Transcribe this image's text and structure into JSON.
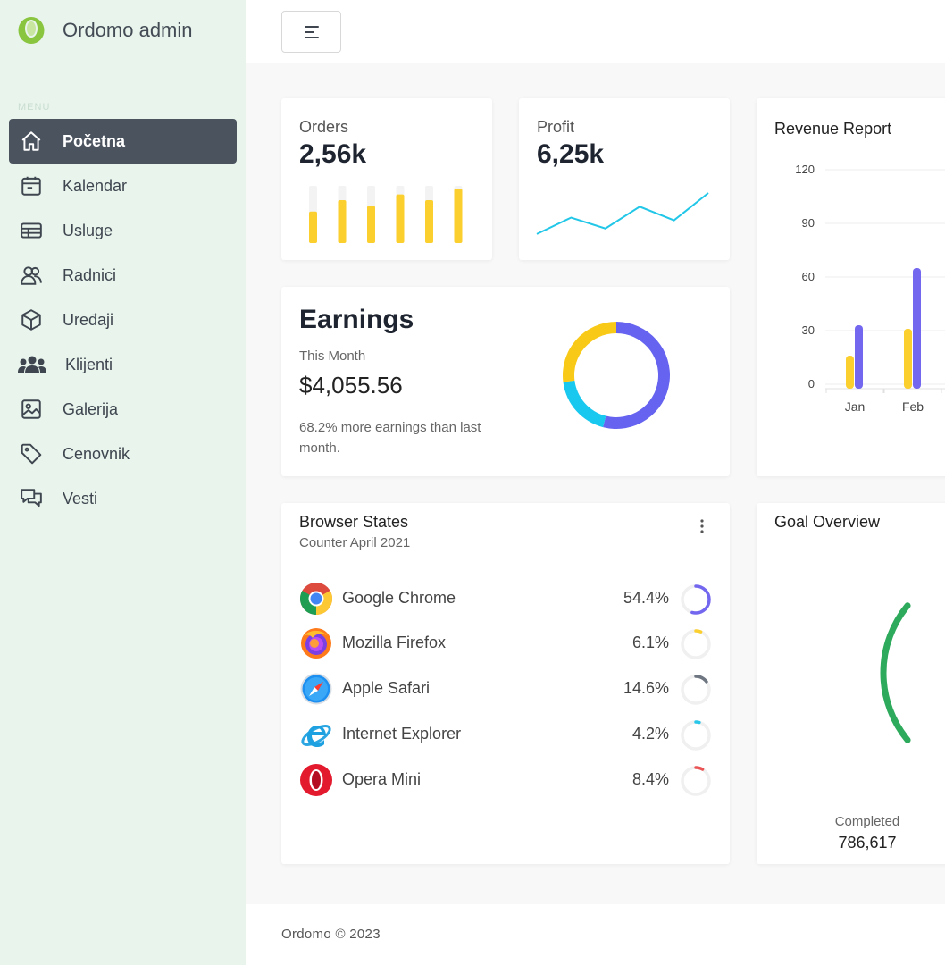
{
  "brand": {
    "name": "Ordomo admin",
    "accent": "#8ac53f"
  },
  "sidebar": {
    "caption": "MENU",
    "items": [
      {
        "label": "Početna",
        "icon": "home-icon",
        "active": true
      },
      {
        "label": "Kalendar",
        "icon": "calendar-icon"
      },
      {
        "label": "Usluge",
        "icon": "table-icon"
      },
      {
        "label": "Radnici",
        "icon": "users-icon"
      },
      {
        "label": "Uređaji",
        "icon": "box-icon"
      },
      {
        "label": "Klijenti",
        "icon": "people-group-icon"
      },
      {
        "label": "Galerija",
        "icon": "image-icon"
      },
      {
        "label": "Cenovnik",
        "icon": "tag-icon"
      },
      {
        "label": "Vesti",
        "icon": "chat-icon"
      }
    ]
  },
  "header": {
    "toggle_icon": "menu-toggle-icon"
  },
  "orders": {
    "label": "Orders",
    "value": "2,56k",
    "bar_levels": [
      0.55,
      0.75,
      0.65,
      0.85,
      0.75,
      0.95
    ],
    "color": "#fbcf2e"
  },
  "profit": {
    "label": "Profit",
    "value": "6,25k",
    "trend": [
      10,
      40,
      20,
      60,
      35,
      85
    ],
    "color": "#22c7e8"
  },
  "earnings": {
    "title": "Earnings",
    "period": "This Month",
    "amount": "$4,055.56",
    "note": "68.2% more earnings than last month.",
    "donut": [
      {
        "value": 54,
        "color": "#6563ef"
      },
      {
        "value": 19,
        "color": "#18c8ee"
      },
      {
        "value": 27,
        "color": "#f9c917"
      }
    ]
  },
  "revenue": {
    "title": "Revenue Report"
  },
  "chart_data": {
    "type": "bar",
    "title": "Revenue Report",
    "categories": [
      "Jan",
      "Feb"
    ],
    "series": [
      {
        "values": [
          16,
          31
        ],
        "color": "#fbcf2e"
      },
      {
        "values": [
          33,
          65
        ],
        "color": "#7367f0"
      }
    ],
    "y_ticks": [
      0,
      30,
      60,
      90,
      120
    ],
    "ylim": [
      0,
      120
    ],
    "grid": true
  },
  "browsers": {
    "title": "Browser States",
    "subtitle": "Counter April 2021",
    "menu_icon": "more-vertical-icon",
    "items": [
      {
        "name": "Google Chrome",
        "pct": "54.4%",
        "level": 0.544,
        "color": "#7367f0",
        "icon": "chrome-icon"
      },
      {
        "name": "Mozilla Firefox",
        "pct": "6.1%",
        "level": 0.061,
        "color": "#fbcf2e",
        "icon": "firefox-icon"
      },
      {
        "name": "Apple Safari",
        "pct": "14.6%",
        "level": 0.146,
        "color": "#6e7681",
        "icon": "safari-icon"
      },
      {
        "name": "Internet Explorer",
        "pct": "4.2%",
        "level": 0.042,
        "color": "#28c7ea",
        "icon": "ie-icon"
      },
      {
        "name": "Opera Mini",
        "pct": "8.4%",
        "level": 0.084,
        "color": "#ea5455",
        "icon": "opera-icon"
      }
    ]
  },
  "goal": {
    "title": "Goal Overview",
    "completed_label": "Completed",
    "completed_value": "786,617",
    "color": "#2eaa5c"
  },
  "footer": {
    "text": "Ordomo © 2023"
  }
}
